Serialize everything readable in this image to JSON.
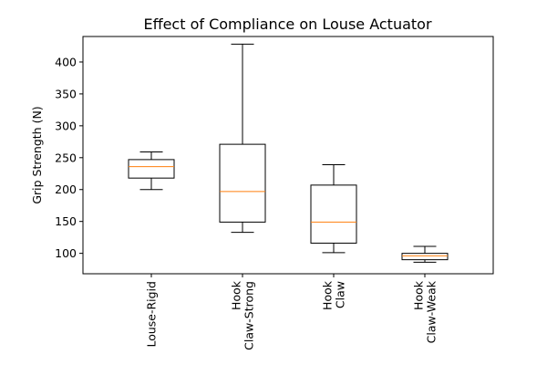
{
  "chart_data": {
    "type": "box",
    "title": "Effect of Compliance on Louse Actuator",
    "xlabel": "",
    "ylabel": "Grip Strength (N)",
    "ylim": [
      68,
      440
    ],
    "yticks": [
      100,
      150,
      200,
      250,
      300,
      350,
      400
    ],
    "categories": [
      [
        "Louse-Rigid"
      ],
      [
        "Hook",
        "Claw-Strong"
      ],
      [
        "Hook",
        "Claw"
      ],
      [
        "Hook",
        "Claw-Weak"
      ]
    ],
    "boxes": [
      {
        "whisker_low": 200,
        "q1": 218,
        "median": 236,
        "q3": 247,
        "whisker_high": 259
      },
      {
        "whisker_low": 133,
        "q1": 149,
        "median": 197,
        "q3": 271,
        "whisker_high": 428
      },
      {
        "whisker_low": 101,
        "q1": 116,
        "median": 149,
        "q3": 207,
        "whisker_high": 239
      },
      {
        "whisker_low": 86,
        "q1": 90,
        "median": 96,
        "q3": 100,
        "whisker_high": 111
      }
    ],
    "colors": {
      "box": "#000000",
      "median": "#ff7f0e",
      "frame": "#000000"
    },
    "grid": false,
    "legend": "none"
  }
}
